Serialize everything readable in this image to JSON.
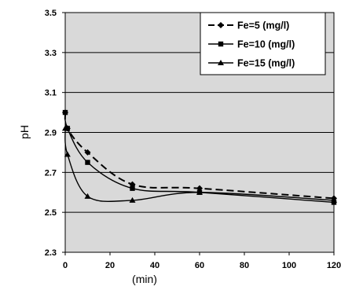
{
  "chart_data": {
    "type": "line",
    "xlabel": "(min)",
    "ylabel": "pH",
    "xlim": [
      0,
      120
    ],
    "ylim": [
      2.3,
      3.5
    ],
    "x_ticks": [
      "0",
      "20",
      "40",
      "60",
      "80",
      "100",
      "120"
    ],
    "y_ticks": [
      "2.3",
      "2.5",
      "2.7",
      "2.9",
      "3.1",
      "3.3",
      "3.5"
    ],
    "grid": "horizontal",
    "legend_position": "top-right",
    "plot_background": "#d9d9d9",
    "series": [
      {
        "name": "Fe=5 (mg/l)",
        "marker": "diamond",
        "line": "dashed",
        "x": [
          0,
          1,
          10,
          30,
          60,
          120
        ],
        "y": [
          3.0,
          2.92,
          2.8,
          2.64,
          2.62,
          2.57
        ]
      },
      {
        "name": "Fe=10 (mg/l)",
        "marker": "square",
        "line": "solid",
        "x": [
          0,
          1,
          10,
          30,
          60,
          120
        ],
        "y": [
          3.0,
          2.92,
          2.75,
          2.62,
          2.6,
          2.55
        ]
      },
      {
        "name": "Fe=15 (mg/l)",
        "marker": "triangle",
        "line": "solid",
        "x": [
          0,
          1,
          10,
          30,
          60,
          120
        ],
        "y": [
          2.92,
          2.79,
          2.58,
          2.56,
          2.6,
          2.56
        ]
      }
    ]
  }
}
